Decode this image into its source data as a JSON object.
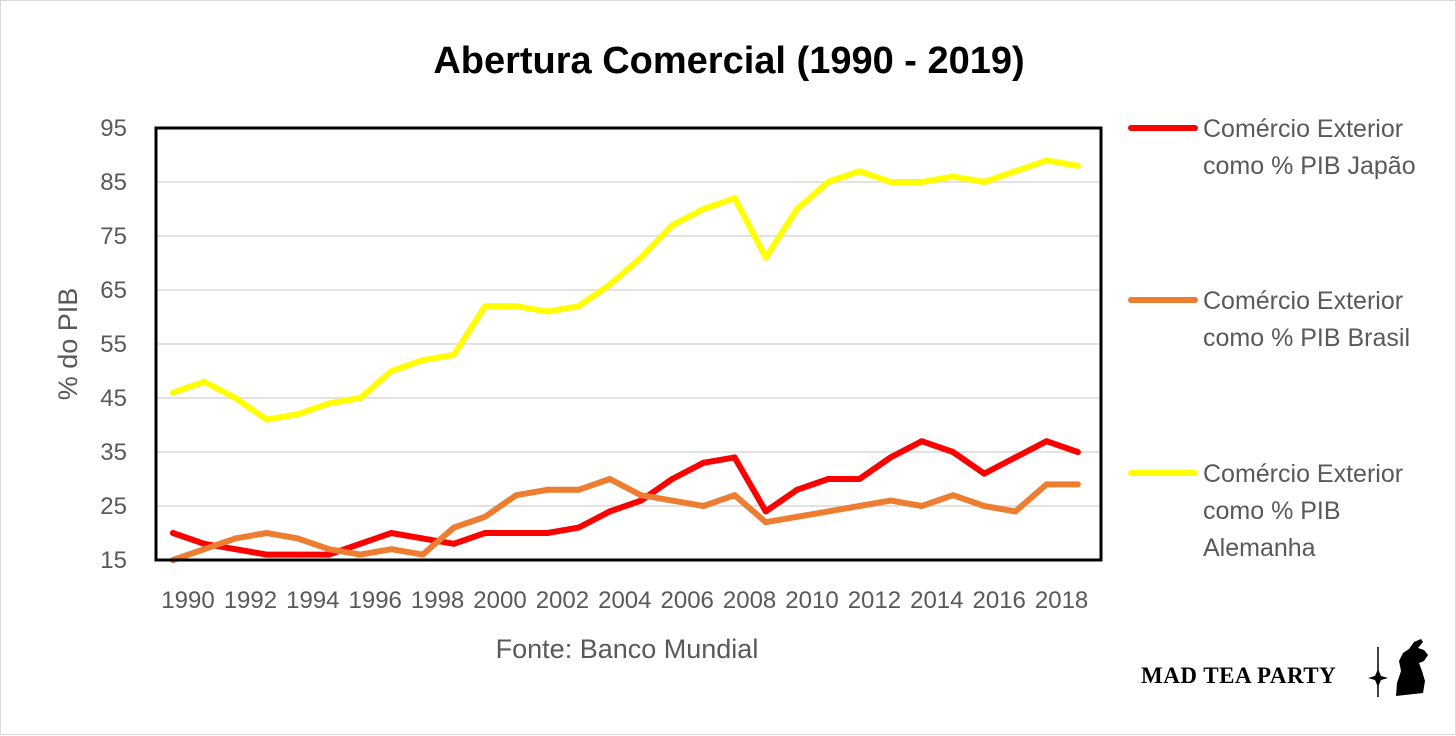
{
  "chart_data": {
    "type": "line",
    "title": "Abertura Comercial (1990 - 2019)",
    "xlabel": "Fonte: Banco Mundial",
    "ylabel": "% do PIB",
    "ylim": [
      15,
      95
    ],
    "yticks": [
      15,
      25,
      35,
      45,
      55,
      65,
      75,
      85,
      95
    ],
    "grid": true,
    "legend_position": "right",
    "x": [
      1990,
      1991,
      1992,
      1993,
      1994,
      1995,
      1996,
      1997,
      1998,
      1999,
      2000,
      2001,
      2002,
      2003,
      2004,
      2005,
      2006,
      2007,
      2008,
      2009,
      2010,
      2011,
      2012,
      2013,
      2014,
      2015,
      2016,
      2017,
      2018,
      2019
    ],
    "xtick_labels": [
      "1990",
      "1992",
      "1994",
      "1996",
      "1998",
      "2000",
      "2002",
      "2004",
      "2006",
      "2008",
      "2010",
      "2012",
      "2014",
      "2016",
      "2018"
    ],
    "series": [
      {
        "name": "Comércio Exterior como % PIB Japão",
        "legend_lines": [
          "Comércio Exterior",
          "como % PIB Japão"
        ],
        "color": "#ff0000",
        "values": [
          20,
          18,
          17,
          16,
          16,
          16,
          18,
          20,
          19,
          18,
          20,
          20,
          20,
          21,
          24,
          26,
          30,
          33,
          34,
          24,
          28,
          30,
          30,
          34,
          37,
          35,
          31,
          34,
          37,
          35
        ]
      },
      {
        "name": "Comércio Exterior como % PIB Brasil",
        "legend_lines": [
          "Comércio Exterior",
          "como % PIB Brasil"
        ],
        "color": "#ed7d31",
        "values": [
          15,
          17,
          19,
          20,
          19,
          17,
          16,
          17,
          16,
          21,
          23,
          27,
          28,
          28,
          30,
          27,
          26,
          25,
          27,
          22,
          23,
          24,
          25,
          26,
          25,
          27,
          25,
          24,
          29,
          29
        ]
      },
      {
        "name": "Comércio Exterior como % PIB Alemanha",
        "legend_lines": [
          "Comércio Exterior",
          "como % PIB",
          "Alemanha"
        ],
        "color": "#ffff00",
        "values": [
          46,
          48,
          45,
          41,
          42,
          44,
          45,
          50,
          52,
          53,
          62,
          62,
          61,
          62,
          66,
          71,
          77,
          80,
          82,
          71,
          80,
          85,
          87,
          85,
          85,
          86,
          85,
          87,
          89,
          88
        ]
      }
    ]
  },
  "logo": {
    "text": "MAD TEA PARTY",
    "icon": "hare-silhouette-icon"
  }
}
